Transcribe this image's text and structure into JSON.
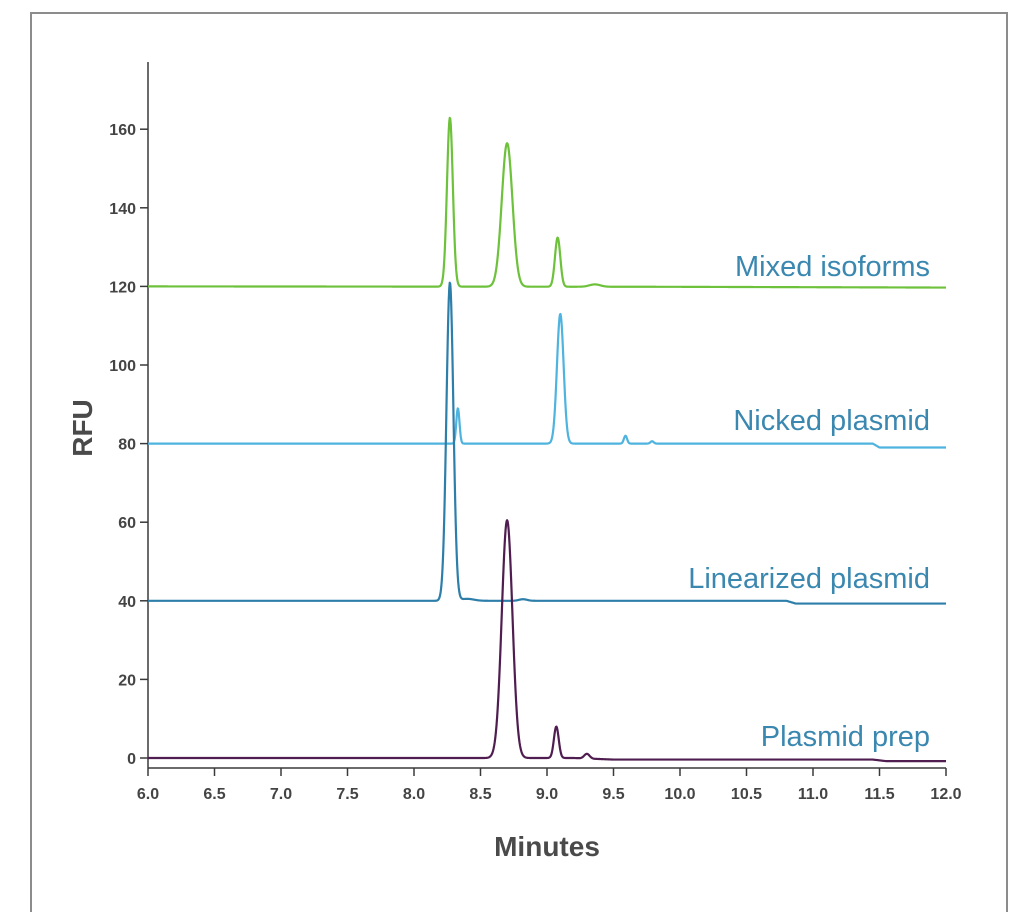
{
  "chart_data": {
    "type": "line",
    "xlabel": "Minutes",
    "ylabel": "RFU",
    "xlim": [
      6.0,
      12.0
    ],
    "ylim": [
      -4,
      177
    ],
    "x_ticks": [
      "6.0",
      "6.5",
      "7.0",
      "7.5",
      "8.0",
      "8.5",
      "9.0",
      "9.5",
      "10.0",
      "10.5",
      "11.0",
      "11.5",
      "12.0"
    ],
    "y_ticks": [
      "0",
      "20",
      "40",
      "60",
      "80",
      "100",
      "120",
      "140",
      "160"
    ],
    "grid": false,
    "series": [
      {
        "name": "Mixed isoforms",
        "color": "#6dc13b",
        "label_color": "#3a87b0",
        "baseline": 120,
        "drift": [
          [
            6.0,
            0
          ],
          [
            9.9,
            -0.1
          ],
          [
            12.0,
            -0.3
          ]
        ],
        "peaks": [
          {
            "x": 8.27,
            "height": 43,
            "width": 0.022
          },
          {
            "x": 8.7,
            "height": 36.5,
            "width": 0.04
          },
          {
            "x": 9.08,
            "height": 12.5,
            "width": 0.02
          },
          {
            "x": 9.36,
            "height": 0.6,
            "width": 0.04
          }
        ]
      },
      {
        "name": "Nicked plasmid",
        "color": "#4eb3de",
        "label_color": "#3a87b0",
        "baseline": 80,
        "drift": [
          [
            6.0,
            0
          ],
          [
            11.45,
            0
          ],
          [
            11.5,
            -1
          ],
          [
            12.0,
            -1
          ]
        ],
        "peaks": [
          {
            "x": 8.33,
            "height": 9,
            "width": 0.012
          },
          {
            "x": 9.1,
            "height": 33,
            "width": 0.025
          },
          {
            "x": 9.59,
            "height": 2,
            "width": 0.012
          },
          {
            "x": 9.79,
            "height": 0.6,
            "width": 0.012
          }
        ]
      },
      {
        "name": "Linearized plasmid",
        "color": "#2e7eaa",
        "label_color": "#3a87b0",
        "baseline": 40,
        "drift": [
          [
            6.0,
            0
          ],
          [
            10.8,
            0
          ],
          [
            10.87,
            -0.7
          ],
          [
            12.0,
            -0.7
          ]
        ],
        "peaks": [
          {
            "x": 8.27,
            "height": 81,
            "width": 0.026
          },
          {
            "x": 8.4,
            "height": 0.5,
            "width": 0.05
          },
          {
            "x": 8.82,
            "height": 0.4,
            "width": 0.03
          }
        ]
      },
      {
        "name": "Plasmid prep",
        "color": "#4f1d4f",
        "label_color": "#3a87b0",
        "baseline": 0,
        "drift": [
          [
            6.0,
            0
          ],
          [
            9.2,
            0
          ],
          [
            9.5,
            -0.4
          ],
          [
            11.45,
            -0.4
          ],
          [
            11.55,
            -0.8
          ],
          [
            12.0,
            -0.8
          ]
        ],
        "peaks": [
          {
            "x": 8.7,
            "height": 60.5,
            "width": 0.04
          },
          {
            "x": 9.07,
            "height": 8,
            "width": 0.018
          },
          {
            "x": 9.3,
            "height": 1.2,
            "width": 0.02
          }
        ]
      }
    ]
  }
}
